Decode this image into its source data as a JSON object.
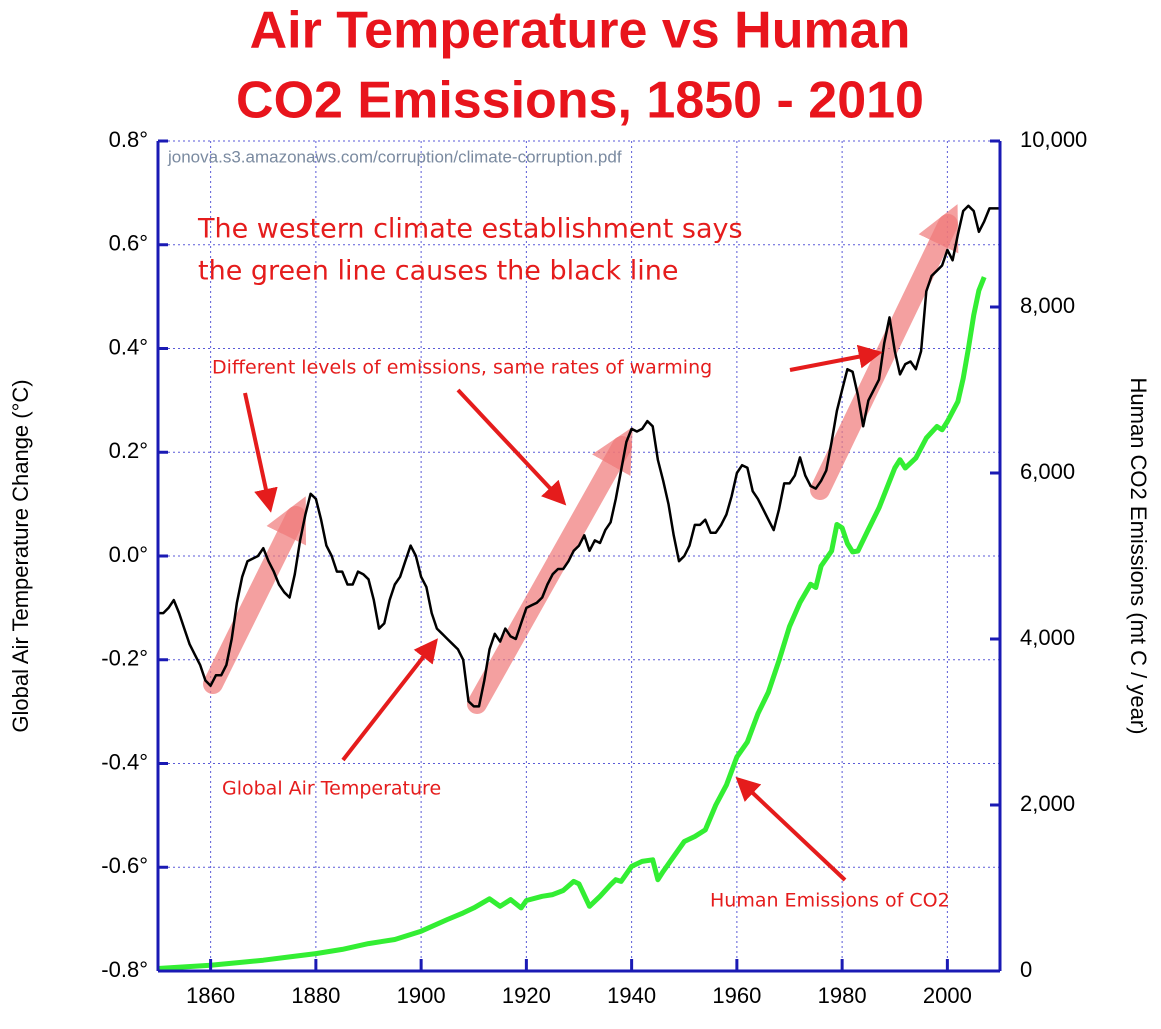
{
  "chart_data": {
    "type": "line",
    "title": [
      "Air Temperature vs Human",
      "CO2 Emissions, 1850 - 2010"
    ],
    "source": "jonova.s3.amazonaws.com/corruption/climate-corruption.pdf",
    "annotations": [
      "The western climate establishment says",
      "the green line causes the black line",
      "Different levels of emissions, same rates of warming"
    ],
    "ylabel": "Global Air Temperature Change  (°C)",
    "y2label": "Human CO2 Emissions  (mt C / year)",
    "xlim": [
      1850,
      2010
    ],
    "xticks": [
      1860,
      1880,
      1900,
      1920,
      1940,
      1960,
      1980,
      2000
    ],
    "ylim": [
      -0.8,
      0.8
    ],
    "yticks": [
      {
        "value": -0.8,
        "label": "-0.8°"
      },
      {
        "value": -0.6,
        "label": "-0.6°"
      },
      {
        "value": -0.4,
        "label": "-0.4°"
      },
      {
        "value": -0.2,
        "label": "-0.2°"
      },
      {
        "value": 0,
        "label": "0.0°"
      },
      {
        "value": 0.2,
        "label": "0.2°"
      },
      {
        "value": 0.4,
        "label": "0.4°"
      },
      {
        "value": 0.6,
        "label": "0.6°"
      },
      {
        "value": 0.8,
        "label": "0.8°"
      }
    ],
    "y2lim": [
      0,
      10000
    ],
    "y2ticks": [
      0,
      {
        "value": 2000,
        "label": "2,000"
      },
      {
        "value": 4000,
        "label": "4,000"
      },
      {
        "value": 6000,
        "label": "6,000"
      },
      {
        "value": 8000,
        "label": "8,000"
      },
      {
        "value": 10000,
        "label": "10,000"
      }
    ],
    "grid": true,
    "series": [
      {
        "name": "Global Air Temperature",
        "color": "#000000",
        "axis": "y",
        "x": [
          1850,
          1851,
          1852,
          1853,
          1854,
          1855,
          1856,
          1857,
          1858,
          1859,
          1860,
          1861,
          1862,
          1863,
          1864,
          1865,
          1866,
          1867,
          1868,
          1869,
          1870,
          1871,
          1872,
          1873,
          1874,
          1875,
          1876,
          1877,
          1878,
          1879,
          1880,
          1881,
          1882,
          1883,
          1884,
          1885,
          1886,
          1887,
          1888,
          1889,
          1890,
          1891,
          1892,
          1893,
          1894,
          1895,
          1896,
          1897,
          1898,
          1899,
          1900,
          1901,
          1902,
          1903,
          1904,
          1905,
          1906,
          1907,
          1908,
          1909,
          1910,
          1911,
          1912,
          1913,
          1914,
          1915,
          1916,
          1917,
          1918,
          1919,
          1920,
          1921,
          1922,
          1923,
          1924,
          1925,
          1926,
          1927,
          1928,
          1929,
          1930,
          1931,
          1932,
          1933,
          1934,
          1935,
          1936,
          1937,
          1938,
          1939,
          1940,
          1941,
          1942,
          1943,
          1944,
          1945,
          1946,
          1947,
          1948,
          1949,
          1950,
          1951,
          1952,
          1953,
          1954,
          1955,
          1956,
          1957,
          1958,
          1959,
          1960,
          1961,
          1962,
          1963,
          1964,
          1965,
          1966,
          1967,
          1968,
          1969,
          1970,
          1971,
          1972,
          1973,
          1974,
          1975,
          1976,
          1977,
          1978,
          1979,
          1980,
          1981,
          1982,
          1983,
          1984,
          1985,
          1986,
          1987,
          1988,
          1989,
          1990,
          1991,
          1992,
          1993,
          1994,
          1995,
          1996,
          1997,
          1998,
          1999,
          2000,
          2001,
          2002,
          2003,
          2004,
          2005,
          2006,
          2007,
          2008,
          2009,
          2010
        ],
        "values": [
          -0.11,
          -0.11,
          -0.1,
          -0.085,
          -0.11,
          -0.14,
          -0.17,
          -0.19,
          -0.21,
          -0.24,
          -0.25,
          -0.23,
          -0.23,
          -0.21,
          -0.16,
          -0.09,
          -0.04,
          -0.01,
          -0.005,
          0,
          0.015,
          -0.01,
          -0.03,
          -0.055,
          -0.07,
          -0.08,
          -0.035,
          0.03,
          0.08,
          0.12,
          0.11,
          0.07,
          0.02,
          0,
          -0.03,
          -0.03,
          -0.055,
          -0.055,
          -0.03,
          -0.035,
          -0.045,
          -0.085,
          -0.14,
          -0.13,
          -0.085,
          -0.055,
          -0.04,
          -0.01,
          0.02,
          0,
          -0.04,
          -0.06,
          -0.11,
          -0.14,
          -0.15,
          -0.16,
          -0.17,
          -0.18,
          -0.2,
          -0.28,
          -0.29,
          -0.29,
          -0.24,
          -0.18,
          -0.15,
          -0.165,
          -0.14,
          -0.155,
          -0.16,
          -0.13,
          -0.1,
          -0.095,
          -0.09,
          -0.08,
          -0.055,
          -0.035,
          -0.025,
          -0.025,
          -0.01,
          0.01,
          0.02,
          0.04,
          0.01,
          0.03,
          0.025,
          0.05,
          0.065,
          0.11,
          0.165,
          0.22,
          0.245,
          0.24,
          0.245,
          0.26,
          0.25,
          0.185,
          0.145,
          0.1,
          0.04,
          -0.01,
          0,
          0.02,
          0.06,
          0.06,
          0.07,
          0.045,
          0.045,
          0.06,
          0.08,
          0.115,
          0.16,
          0.175,
          0.17,
          0.125,
          0.11,
          0.09,
          0.07,
          0.05,
          0.09,
          0.14,
          0.14,
          0.155,
          0.19,
          0.155,
          0.135,
          0.13,
          0.145,
          0.165,
          0.22,
          0.28,
          0.32,
          0.36,
          0.355,
          0.31,
          0.25,
          0.3,
          0.32,
          0.34,
          0.41,
          0.46,
          0.395,
          0.35,
          0.37,
          0.375,
          0.36,
          0.395,
          0.51,
          0.54,
          0.55,
          0.56,
          0.59,
          0.57,
          0.62,
          0.665,
          0.675,
          0.665,
          0.625,
          0.645,
          0.67,
          0.67,
          0.67
        ]
      },
      {
        "name": "Human Emissions of CO2",
        "color": "#33ee33",
        "axis": "y2",
        "x": [
          1850,
          1855,
          1860,
          1865,
          1870,
          1875,
          1880,
          1885,
          1890,
          1895,
          1900,
          1905,
          1908,
          1910,
          1913,
          1915,
          1917,
          1919,
          1920,
          1923,
          1925,
          1927,
          1929,
          1930,
          1932,
          1934,
          1936,
          1937,
          1938,
          1940,
          1942,
          1944,
          1945,
          1946,
          1948,
          1950,
          1952,
          1954,
          1956,
          1958,
          1960,
          1962,
          1964,
          1966,
          1968,
          1970,
          1972,
          1974,
          1975,
          1976,
          1978,
          1979,
          1980,
          1981,
          1982,
          1983,
          1985,
          1987,
          1989,
          1990,
          1991,
          1992,
          1994,
          1996,
          1998,
          1999,
          2000,
          2002,
          2003,
          2004,
          2005,
          2006,
          2007
        ],
        "values": [
          30,
          50,
          70,
          100,
          130,
          170,
          210,
          260,
          330,
          380,
          480,
          620,
          700,
          760,
          870,
          780,
          860,
          760,
          850,
          900,
          920,
          970,
          1080,
          1050,
          780,
          900,
          1040,
          1100,
          1080,
          1260,
          1320,
          1340,
          1100,
          1200,
          1380,
          1560,
          1620,
          1700,
          2000,
          2240,
          2580,
          2760,
          3100,
          3360,
          3740,
          4150,
          4440,
          4660,
          4620,
          4880,
          5060,
          5380,
          5340,
          5150,
          5050,
          5060,
          5320,
          5580,
          5900,
          6060,
          6160,
          6060,
          6180,
          6420,
          6560,
          6520,
          6620,
          6860,
          7140,
          7500,
          7900,
          8200,
          8360
        ]
      }
    ]
  }
}
